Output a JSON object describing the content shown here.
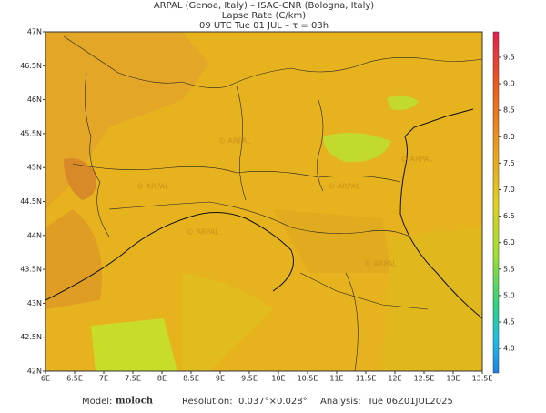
{
  "header": {
    "line1": "ARPAL (Genoa, Italy)  –  ISAC-CNR (Bologna, Italy)",
    "line2": "Lapse Rate (C/km)",
    "line3": "09 UTC Tue 01 JUL  –  τ = 03h"
  },
  "map": {
    "lat_labels": [
      "47N",
      "46.5N",
      "46N",
      "45.5N",
      "45N",
      "44.5N",
      "44N",
      "43.5N",
      "43N",
      "42.5N",
      "42N"
    ],
    "lon_labels": [
      "6E",
      "6.5E",
      "7E",
      "7.5E",
      "8E",
      "8.5E",
      "9E",
      "9.5E",
      "10E",
      "10.5E",
      "11E",
      "11.5E",
      "12E",
      "12.5E",
      "13E",
      "13.5E"
    ],
    "watermark": "© ARPAL"
  },
  "colorbar": {
    "labels": [
      "9.5",
      "9.0",
      "8.5",
      "8.0",
      "7.5",
      "7.0",
      "6.5",
      "6.0",
      "5.5",
      "5.0",
      "4.5",
      "4.0"
    ]
  },
  "footer": {
    "model_label": "Model:",
    "model": "moloch",
    "resolution_label": "Resolution:",
    "resolution": "0.037°×0.028°",
    "analysis_label": "Analysis:",
    "analysis": "Tue 06Z01JUL2025"
  }
}
